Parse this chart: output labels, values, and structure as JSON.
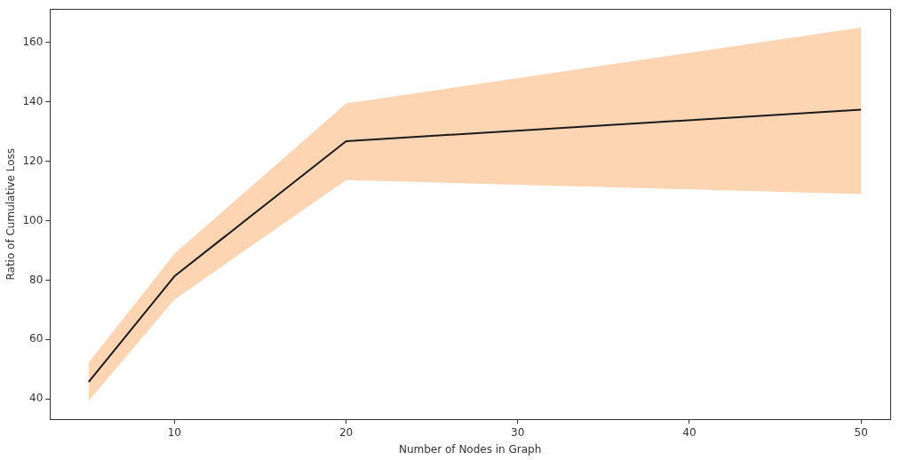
{
  "chart_data": {
    "type": "line",
    "xlabel": "Number of Nodes in Graph",
    "ylabel": "Ratio of Cumulative Loss",
    "x": [
      5,
      10,
      20,
      50
    ],
    "series": [
      {
        "color": "#1a1a1a",
        "values": [
          45.7,
          81.3,
          126.8,
          137.4
        ],
        "lower": [
          39.3,
          73.5,
          113.7,
          109.0
        ],
        "upper": [
          52.2,
          88.9,
          139.5,
          165.1
        ]
      }
    ],
    "xlim": [
      2.75,
      51.7
    ],
    "xticks": [
      10,
      20,
      30,
      40,
      50
    ],
    "ylim": [
      33.1,
      171.3
    ],
    "yticks": [
      40,
      60,
      80,
      100,
      120,
      140,
      160
    ],
    "grid": false,
    "legend": false,
    "marker": "none",
    "line_style": "solid"
  }
}
